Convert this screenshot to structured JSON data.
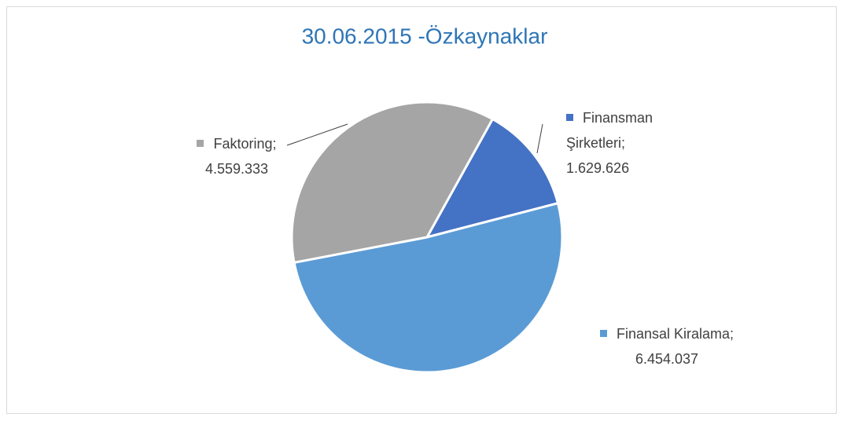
{
  "chart_data": {
    "type": "pie",
    "title": "30.06.2015 -Özkaynaklar",
    "categories": [
      "Finansman Şirketleri",
      "Finansal Kiralama",
      "Faktoring"
    ],
    "values": [
      1629626,
      6454037,
      4559333
    ],
    "value_labels": [
      "1.629.626",
      "6.454.037",
      "4.559.333"
    ],
    "label_separator": ";",
    "colors": [
      "#4472c4",
      "#5b9bd5",
      "#a5a5a5"
    ]
  }
}
